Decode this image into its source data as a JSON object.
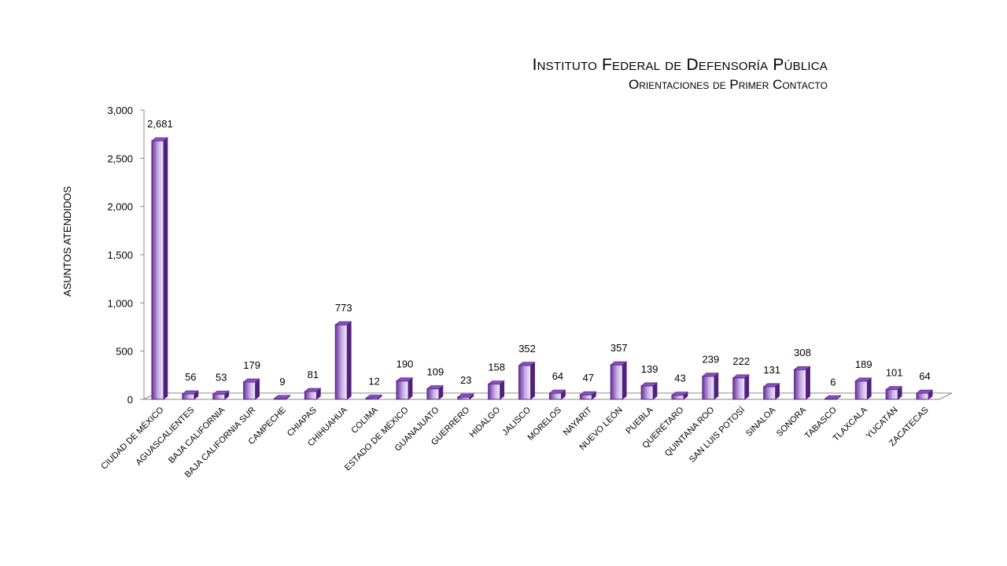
{
  "chart_data": {
    "type": "bar",
    "title": "Instituto Federal de Defensoría Pública",
    "subtitle": "Orientaciones de Primer Contacto",
    "ylabel": "ASUNTOS ATENDIDOS",
    "xlabel": "",
    "ylim": [
      0,
      3000
    ],
    "yticks": [
      0,
      500,
      1000,
      1500,
      2000,
      2500,
      3000
    ],
    "ytick_labels": [
      "0",
      "500",
      "1,000",
      "1,500",
      "2,000",
      "2,500",
      "3,000"
    ],
    "grid": false,
    "legend": "none",
    "categories": [
      "CIUDAD DE MÉXICO",
      "AGUASCALIENTES",
      "BAJA CALIFORNIA",
      "BAJA CALIFORNIA SUR",
      "CAMPECHE",
      "CHIAPAS",
      "CHIHUAHUA",
      "COLIMA",
      "ESTADO DE MÉXICO",
      "GUANAJUATO",
      "GUERRERO",
      "HIDALGO",
      "JALISCO",
      "MORELOS",
      "NAYARIT",
      "NUEVO LEÓN",
      "PUEBLA",
      "QUERÉTARO",
      "QUINTANA ROO",
      "SAN LUIS POTOSÍ",
      "SINALOA",
      "SONORA",
      "TABASCO",
      "TLAXCALA",
      "YUCATÁN",
      "ZACATECAS"
    ],
    "values": [
      2681,
      56,
      53,
      179,
      9,
      81,
      773,
      12,
      190,
      109,
      23,
      158,
      352,
      64,
      47,
      357,
      139,
      43,
      239,
      222,
      131,
      308,
      6,
      189,
      101,
      64
    ],
    "value_labels": [
      "2,681",
      "56",
      "53",
      "179",
      "9",
      "81",
      "773",
      "12",
      "190",
      "109",
      "23",
      "158",
      "352",
      "64",
      "47",
      "357",
      "139",
      "43",
      "239",
      "222",
      "131",
      "308",
      "6",
      "189",
      "101",
      "64"
    ],
    "colors": {
      "bar_light": "#f3ecfb",
      "bar_dark": "#6a2f9a",
      "bar_top": "#8a4fc0",
      "bar_side": "#4f2178",
      "bar_edge": "#5e2a8c",
      "axis": "#888888"
    }
  }
}
